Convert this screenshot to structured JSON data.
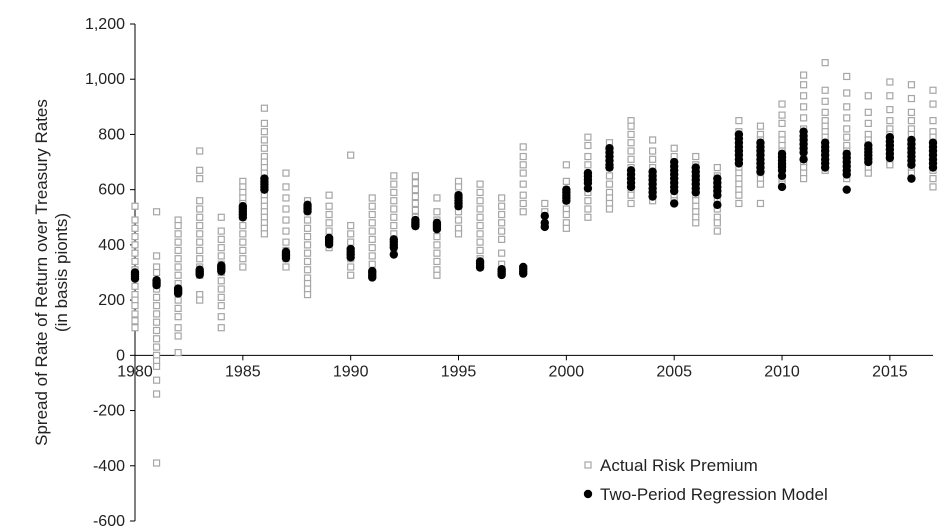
{
  "chart_data": {
    "type": "scatter",
    "ylabel": "Spread of Rate of Return over Treasury Rates\n(in basis pionts)",
    "xlabel": "",
    "xlim": [
      1980,
      2017
    ],
    "ylim": [
      -600,
      1200
    ],
    "x_ticks": [
      1980,
      1985,
      1990,
      1995,
      2000,
      2005,
      2010,
      2015
    ],
    "y_ticks": [
      -600,
      -400,
      -200,
      0,
      200,
      400,
      600,
      800,
      1000,
      1200
    ],
    "grid": false,
    "legend_position": "bottom-right",
    "legend": [
      {
        "key": "actual",
        "label": "Actual Risk Premium"
      },
      {
        "key": "model",
        "label": "Two-Period Regression Model"
      }
    ],
    "colors": {
      "actual": "#a6a6a6",
      "model": "#000000",
      "axis": "#000000"
    },
    "series": [
      {
        "name": "Actual Risk Premium",
        "marker": "open-square",
        "groups": [
          {
            "x": 1980,
            "y": [
              540,
              490,
              460,
              430,
              400,
              370,
              340,
              310,
              280,
              250,
              220,
              200,
              180,
              150,
              125,
              100
            ]
          },
          {
            "x": 1981,
            "y": [
              520,
              360,
              320,
              300,
              270,
              240,
              210,
              180,
              150,
              120,
              90,
              60,
              30,
              0,
              -20,
              -40,
              -90,
              -140,
              -390
            ]
          },
          {
            "x": 1982,
            "y": [
              490,
              470,
              440,
              410,
              380,
              350,
              320,
              290,
              260,
              230,
              200,
              170,
              140,
              100,
              70,
              10
            ]
          },
          {
            "x": 1983,
            "y": [
              740,
              670,
              640,
              560,
              530,
              500,
              470,
              440,
              410,
              380,
              350,
              320,
              290,
              220,
              200
            ]
          },
          {
            "x": 1984,
            "y": [
              500,
              450,
              420,
              390,
              360,
              330,
              300,
              270,
              240,
              210,
              180,
              140,
              100
            ]
          },
          {
            "x": 1985,
            "y": [
              630,
              610,
              590,
              570,
              550,
              530,
              500,
              470,
              440,
              410,
              380,
              350,
              320
            ]
          },
          {
            "x": 1986,
            "y": [
              895,
              840,
              810,
              780,
              750,
              720,
              700,
              680,
              660,
              640,
              620,
              600,
              580,
              560,
              540,
              520,
              500,
              480,
              460,
              440
            ]
          },
          {
            "x": 1987,
            "y": [
              660,
              610,
              570,
              530,
              490,
              450,
              410,
              380,
              350,
              320
            ]
          },
          {
            "x": 1988,
            "y": [
              560,
              520,
              490,
              460,
              430,
              400,
              370,
              340,
              310,
              280,
              260,
              240,
              220
            ]
          },
          {
            "x": 1989,
            "y": [
              580,
              540,
              510,
              480,
              450,
              420,
              390
            ]
          },
          {
            "x": 1990,
            "y": [
              725,
              470,
              440,
              410,
              380,
              350,
              320,
              290
            ]
          },
          {
            "x": 1991,
            "y": [
              570,
              540,
              510,
              480,
              450,
              420,
              390,
              360,
              330,
              300
            ]
          },
          {
            "x": 1992,
            "y": [
              650,
              620,
              590,
              560,
              530,
              500,
              470,
              440,
              410,
              380
            ]
          },
          {
            "x": 1993,
            "y": [
              650,
              625,
              600,
              575,
              550,
              525,
              500,
              470
            ]
          },
          {
            "x": 1994,
            "y": [
              570,
              520,
              490,
              460,
              430,
              400,
              370,
              340,
              310,
              290
            ]
          },
          {
            "x": 1995,
            "y": [
              630,
              610,
              580,
              550,
              520,
              490,
              460,
              440
            ]
          },
          {
            "x": 1996,
            "y": [
              620,
              590,
              560,
              530,
              500,
              470,
              440,
              410,
              380,
              350,
              320
            ]
          },
          {
            "x": 1997,
            "y": [
              570,
              540,
              510,
              480,
              450,
              420,
              370,
              330,
              310
            ]
          },
          {
            "x": 1998,
            "y": [
              755,
              720,
              690,
              660,
              620,
              580,
              550,
              520
            ]
          },
          {
            "x": 1999,
            "y": [
              550,
              520
            ]
          },
          {
            "x": 2000,
            "y": [
              690,
              630,
              600,
              580,
              560,
              530,
              510,
              480,
              460
            ]
          },
          {
            "x": 2001,
            "y": [
              790,
              760,
              720,
              690,
              660,
              620,
              590,
              560,
              530,
              500
            ]
          },
          {
            "x": 2002,
            "y": [
              770,
              740,
              710,
              680,
              650,
              620,
              590,
              570,
              550,
              530
            ]
          },
          {
            "x": 2003,
            "y": [
              850,
              830,
              800,
              770,
              740,
              710,
              680,
              650,
              620,
              600,
              580,
              550
            ]
          },
          {
            "x": 2004,
            "y": [
              780,
              740,
              710,
              680,
              650,
              620,
              600,
              580,
              560
            ]
          },
          {
            "x": 2005,
            "y": [
              750,
              720,
              690,
              660,
              630,
              600,
              580,
              560
            ]
          },
          {
            "x": 2006,
            "y": [
              720,
              690,
              660,
              630,
              600,
              580,
              560,
              540,
              520,
              500,
              480
            ]
          },
          {
            "x": 2007,
            "y": [
              680,
              650,
              620,
              590,
              560,
              530,
              500,
              480,
              450
            ]
          },
          {
            "x": 2008,
            "y": [
              850,
              810,
              790,
              760,
              740,
              720,
              700,
              680,
              660,
              640,
              620,
              600,
              580,
              550
            ]
          },
          {
            "x": 2009,
            "y": [
              830,
              800,
              780,
              760,
              740,
              720,
              700,
              680,
              660,
              640,
              620,
              550
            ]
          },
          {
            "x": 2010,
            "y": [
              910,
              870,
              840,
              800,
              780,
              760,
              740,
              720,
              700,
              680,
              660,
              640,
              620
            ]
          },
          {
            "x": 2011,
            "y": [
              1015,
              980,
              940,
              900,
              860,
              820,
              800,
              780,
              760,
              740,
              720,
              700,
              680,
              660,
              640
            ]
          },
          {
            "x": 2012,
            "y": [
              1060,
              960,
              920,
              880,
              850,
              830,
              810,
              790,
              770,
              750,
              730,
              710,
              690,
              670
            ]
          },
          {
            "x": 2013,
            "y": [
              1010,
              950,
              900,
              860,
              820,
              790,
              760,
              740,
              720,
              700,
              680,
              660,
              640
            ]
          },
          {
            "x": 2014,
            "y": [
              940,
              880,
              840,
              800,
              780,
              760,
              740,
              720,
              700,
              680,
              660
            ]
          },
          {
            "x": 2015,
            "y": [
              990,
              940,
              890,
              850,
              820,
              800,
              780,
              760,
              740,
              720,
              700,
              690
            ]
          },
          {
            "x": 2016,
            "y": [
              980,
              930,
              880,
              850,
              820,
              800,
              780,
              760,
              740,
              720,
              700,
              680,
              660
            ]
          },
          {
            "x": 2017,
            "y": [
              960,
              910,
              850,
              810,
              790,
              770,
              750,
              730,
              710,
              690,
              670,
              640,
              610
            ]
          }
        ]
      },
      {
        "name": "Two-Period Regression Model",
        "marker": "filled-circle",
        "groups": [
          {
            "x": 1980,
            "y": [
              300,
              293,
              286,
              278
            ]
          },
          {
            "x": 1981,
            "y": [
              272,
              266,
              260,
              254
            ]
          },
          {
            "x": 1982,
            "y": [
              242,
              236,
              230,
              224
            ]
          },
          {
            "x": 1983,
            "y": [
              310,
              304,
              298,
              292
            ]
          },
          {
            "x": 1984,
            "y": [
              325,
              318,
              312,
              305
            ]
          },
          {
            "x": 1985,
            "y": [
              540,
              530,
              520,
              510,
              500
            ]
          },
          {
            "x": 1986,
            "y": [
              640,
              630,
              620,
              610,
              600
            ]
          },
          {
            "x": 1987,
            "y": [
              375,
              367,
              360,
              352
            ]
          },
          {
            "x": 1988,
            "y": [
              545,
              538,
              530,
              522
            ]
          },
          {
            "x": 1989,
            "y": [
              425,
              418,
              410,
              402
            ]
          },
          {
            "x": 1990,
            "y": [
              385,
              375,
              365,
              355
            ]
          },
          {
            "x": 1991,
            "y": [
              305,
              298,
              290,
              282
            ]
          },
          {
            "x": 1992,
            "y": [
              420,
              410,
              400,
              390,
              365
            ]
          },
          {
            "x": 1993,
            "y": [
              490,
              482,
              475,
              468
            ]
          },
          {
            "x": 1994,
            "y": [
              480,
              472,
              465,
              457
            ]
          },
          {
            "x": 1995,
            "y": [
              580,
              570,
              560,
              550,
              540
            ]
          },
          {
            "x": 1996,
            "y": [
              340,
              333,
              326,
              318
            ]
          },
          {
            "x": 1997,
            "y": [
              312,
              305,
              298,
              291
            ]
          },
          {
            "x": 1998,
            "y": [
              320,
              312,
              304,
              296
            ]
          },
          {
            "x": 1999,
            "y": [
              505,
              480,
              465
            ]
          },
          {
            "x": 2000,
            "y": [
              600,
              590,
              580,
              570,
              560
            ]
          },
          {
            "x": 2001,
            "y": [
              660,
              648,
              636,
              624,
              605
            ]
          },
          {
            "x": 2002,
            "y": [
              750,
              735,
              720,
              705,
              690,
              680
            ]
          },
          {
            "x": 2003,
            "y": [
              670,
              655,
              640,
              625,
              610
            ]
          },
          {
            "x": 2004,
            "y": [
              665,
              650,
              635,
              620,
              605,
              590,
              575
            ]
          },
          {
            "x": 2005,
            "y": [
              700,
              685,
              670,
              655,
              640,
              625,
              610,
              595,
              550
            ]
          },
          {
            "x": 2006,
            "y": [
              680,
              665,
              650,
              635,
              620,
              605,
              590
            ]
          },
          {
            "x": 2007,
            "y": [
              640,
              625,
              610,
              595,
              580,
              545
            ]
          },
          {
            "x": 2008,
            "y": [
              800,
              785,
              770,
              755,
              740,
              725,
              710,
              695
            ]
          },
          {
            "x": 2009,
            "y": [
              770,
              755,
              740,
              725,
              710,
              695,
              680,
              665
            ]
          },
          {
            "x": 2010,
            "y": [
              730,
              718,
              706,
              694,
              682,
              670,
              650,
              610
            ]
          },
          {
            "x": 2011,
            "y": [
              810,
              795,
              780,
              765,
              750,
              735,
              710
            ]
          },
          {
            "x": 2012,
            "y": [
              770,
              755,
              740,
              725,
              710,
              695,
              680
            ]
          },
          {
            "x": 2013,
            "y": [
              730,
              715,
              700,
              685,
              670,
              655,
              600
            ]
          },
          {
            "x": 2014,
            "y": [
              760,
              748,
              736,
              724,
              712,
              700
            ]
          },
          {
            "x": 2015,
            "y": [
              790,
              775,
              760,
              745,
              730,
              715
            ]
          },
          {
            "x": 2016,
            "y": [
              780,
              765,
              750,
              735,
              720,
              705,
              690,
              640
            ]
          },
          {
            "x": 2017,
            "y": [
              770,
              755,
              740,
              725,
              710,
              695,
              680
            ]
          }
        ]
      }
    ]
  }
}
